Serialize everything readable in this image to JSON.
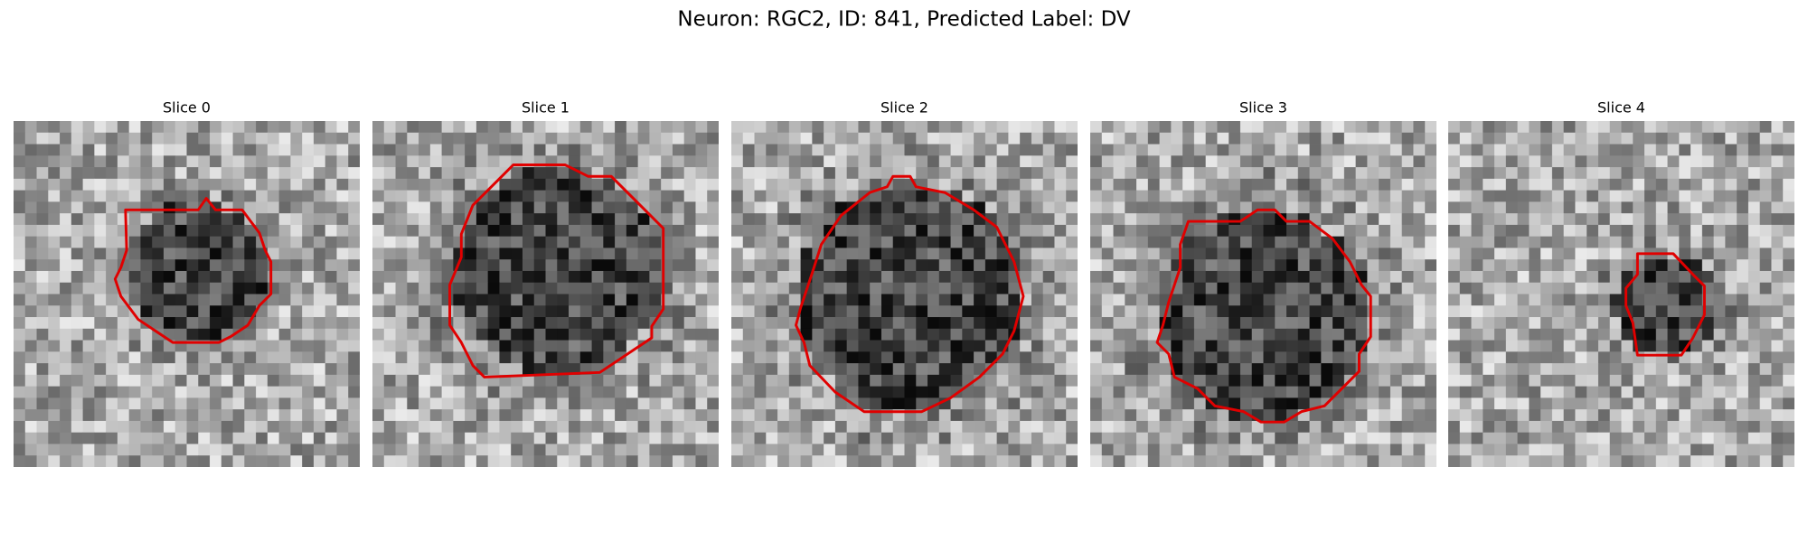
{
  "title": "Neuron: RGC2, ID: 841, Predicted Label: DV",
  "panels": [
    {
      "title": "Slice 0"
    },
    {
      "title": "Slice 1"
    },
    {
      "title": "Slice 2"
    },
    {
      "title": "Slice 3"
    },
    {
      "title": "Slice 4"
    }
  ]
}
